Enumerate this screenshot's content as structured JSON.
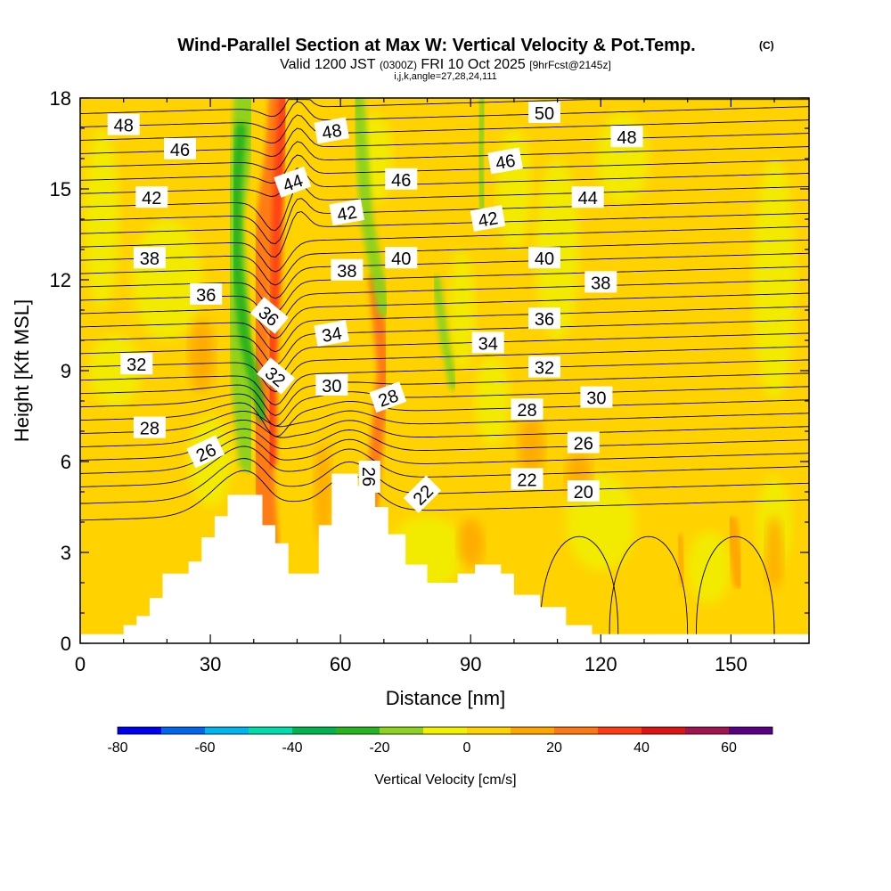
{
  "title": {
    "main": "Wind-Parallel Section at Max W: Vertical Velocity & Pot.Temp.",
    "mark": "(C)",
    "valid_prefix": "Valid 1200 JST",
    "valid_utc": "(0300Z)",
    "valid_date": "FRI 10 Oct 2025",
    "forecast": "[9hrFcst@2145z]",
    "params": "i,j,k,angle=27,28,24,111"
  },
  "chart_data": {
    "type": "heatmap",
    "xlabel": "Distance [nm]",
    "ylabel": "Height [Kft MSL]",
    "xlim": [
      0,
      168
    ],
    "ylim": [
      0,
      18
    ],
    "x_ticks": [
      0,
      30,
      60,
      90,
      120,
      150
    ],
    "y_ticks": [
      0,
      3,
      6,
      9,
      12,
      15,
      18
    ],
    "colorbar": {
      "label": "Vertical Velocity [cm/s]",
      "bounds": [
        -80,
        -70,
        -60,
        -50,
        -40,
        -30,
        -20,
        -10,
        0,
        10,
        20,
        30,
        40,
        50,
        60,
        70
      ],
      "colors": [
        "#0000f0",
        "#0066ee",
        "#00b4ee",
        "#00dcaa",
        "#00b450",
        "#28b41e",
        "#8cd21e",
        "#f0f000",
        "#ffd200",
        "#ffa500",
        "#ff7814",
        "#ff3c14",
        "#dc1414",
        "#a01450",
        "#5a0082"
      ],
      "tick_values": [
        -80,
        -60,
        -40,
        -20,
        0,
        20,
        40,
        60
      ],
      "tick_labels": [
        "-80",
        "-60",
        "-40",
        "-20",
        "0",
        "20",
        "40",
        "60"
      ]
    },
    "base_field_color": "#ffd200",
    "vertical_velocity_features": [
      {
        "kind": "updraft",
        "color": "#ff7814",
        "points": [
          [
            44,
            1.5
          ],
          [
            42,
            6
          ],
          [
            41,
            11
          ],
          [
            43,
            14
          ],
          [
            45,
            16
          ],
          [
            46,
            18
          ]
        ],
        "width_nm": 5
      },
      {
        "kind": "updraft",
        "color": "#ff3c14",
        "points": [
          [
            44,
            6
          ],
          [
            44,
            9
          ],
          [
            45,
            12
          ],
          [
            46,
            16
          ],
          [
            47,
            18
          ]
        ],
        "width_nm": 2.5
      },
      {
        "kind": "updraft",
        "color": "#ff7814",
        "points": [
          [
            66,
            3
          ],
          [
            68,
            6
          ],
          [
            70,
            9
          ],
          [
            68,
            12
          ]
        ],
        "width_nm": 3
      },
      {
        "kind": "downdraft",
        "color": "#8cd21e",
        "points": [
          [
            39,
            6
          ],
          [
            37,
            9
          ],
          [
            36,
            12
          ],
          [
            35,
            14
          ],
          [
            37,
            16
          ],
          [
            38,
            18
          ]
        ],
        "width_nm": 5
      },
      {
        "kind": "downdraft",
        "color": "#28b41e",
        "points": [
          [
            42,
            7.5
          ],
          [
            38,
            10
          ],
          [
            36,
            12.5
          ],
          [
            36,
            15
          ],
          [
            37,
            17
          ]
        ],
        "width_nm": 2.5
      },
      {
        "kind": "downdraft",
        "color": "#8cd21e",
        "points": [
          [
            64,
            18
          ],
          [
            66,
            14
          ],
          [
            70,
            11
          ]
        ],
        "width_nm": 3
      },
      {
        "kind": "downdraft",
        "color": "#8cd21e",
        "points": [
          [
            82,
            12
          ],
          [
            84,
            10
          ],
          [
            86,
            8.5
          ]
        ],
        "width_nm": 2
      },
      {
        "kind": "downdraft",
        "color": "#8cd21e",
        "points": [
          [
            93,
            18
          ],
          [
            92,
            16
          ],
          [
            93,
            14
          ]
        ],
        "width_nm": 2
      },
      {
        "kind": "downdraft",
        "color": "#8cd21e",
        "points": [
          [
            123,
            3.5
          ],
          [
            123,
            2
          ],
          [
            123,
            1.5
          ]
        ],
        "width_nm": 1.2
      },
      {
        "kind": "weak-up",
        "color": "#ffa500",
        "points": [
          [
            150,
            4
          ],
          [
            152,
            2
          ]
        ],
        "width_nm": 3
      },
      {
        "kind": "weak-up",
        "color": "#ffa500",
        "points": [
          [
            138,
            3.5
          ],
          [
            139,
            2
          ]
        ],
        "width_nm": 1.5
      }
    ],
    "terrain_kft": [
      [
        0,
        0.3
      ],
      [
        10,
        0.3
      ],
      [
        10,
        0.6
      ],
      [
        13,
        0.6
      ],
      [
        13,
        0.9
      ],
      [
        16,
        0.9
      ],
      [
        16,
        1.5
      ],
      [
        19,
        1.5
      ],
      [
        19,
        2.3
      ],
      [
        25,
        2.3
      ],
      [
        25,
        2.7
      ],
      [
        28,
        2.7
      ],
      [
        28,
        3.5
      ],
      [
        31,
        3.5
      ],
      [
        31,
        4.2
      ],
      [
        34,
        4.2
      ],
      [
        34,
        4.9
      ],
      [
        42,
        4.9
      ],
      [
        42,
        3.9
      ],
      [
        45,
        3.9
      ],
      [
        45,
        3.3
      ],
      [
        48,
        3.3
      ],
      [
        48,
        2.3
      ],
      [
        55,
        2.3
      ],
      [
        55,
        3.9
      ],
      [
        58,
        3.9
      ],
      [
        58,
        5.6
      ],
      [
        64,
        5.6
      ],
      [
        64,
        5.2
      ],
      [
        68,
        5.2
      ],
      [
        68,
        4.5
      ],
      [
        71,
        4.5
      ],
      [
        71,
        3.6
      ],
      [
        75,
        3.6
      ],
      [
        75,
        2.6
      ],
      [
        80,
        2.6
      ],
      [
        80,
        2.0
      ],
      [
        87,
        2.0
      ],
      [
        87,
        2.3
      ],
      [
        91,
        2.3
      ],
      [
        91,
        2.6
      ],
      [
        97,
        2.6
      ],
      [
        97,
        2.3
      ],
      [
        100,
        2.3
      ],
      [
        100,
        1.6
      ],
      [
        106,
        1.6
      ],
      [
        106,
        1.2
      ],
      [
        112,
        1.2
      ],
      [
        112,
        0.6
      ],
      [
        118,
        0.6
      ],
      [
        118,
        0.3
      ],
      [
        168,
        0.3
      ]
    ],
    "isentropes_theta": [
      20,
      21,
      22,
      23,
      24,
      25,
      26,
      27,
      28,
      29,
      30,
      31,
      32,
      33,
      34,
      35,
      36,
      37,
      38,
      39,
      40,
      41,
      42,
      43,
      44,
      45,
      46,
      47,
      48,
      49,
      50
    ],
    "isentrope_labels": [
      {
        "text": "48",
        "x": 10,
        "y": 17.1
      },
      {
        "text": "46",
        "x": 23,
        "y": 16.3
      },
      {
        "text": "42",
        "x": 16.5,
        "y": 14.7
      },
      {
        "text": "38",
        "x": 16,
        "y": 12.7
      },
      {
        "text": "36",
        "x": 29,
        "y": 11.5
      },
      {
        "text": "32",
        "x": 13,
        "y": 9.2
      },
      {
        "text": "28",
        "x": 16,
        "y": 7.1
      },
      {
        "text": "26",
        "x": 29,
        "y": 6.3,
        "rotate": -25
      },
      {
        "text": "36",
        "x": 43.5,
        "y": 10.8,
        "rotate": 40
      },
      {
        "text": "32",
        "x": 45,
        "y": 8.8,
        "rotate": 40
      },
      {
        "text": "44",
        "x": 49,
        "y": 15.2,
        "rotate": -20
      },
      {
        "text": "48",
        "x": 58,
        "y": 16.9,
        "rotate": -10
      },
      {
        "text": "42",
        "x": 61.5,
        "y": 14.2,
        "rotate": -10
      },
      {
        "text": "38",
        "x": 61.5,
        "y": 12.3
      },
      {
        "text": "34",
        "x": 58,
        "y": 10.2,
        "rotate": -10
      },
      {
        "text": "30",
        "x": 58,
        "y": 8.5
      },
      {
        "text": "28",
        "x": 71,
        "y": 8.1,
        "rotate": -20
      },
      {
        "text": "26",
        "x": 66.5,
        "y": 5.5,
        "rotate": 90
      },
      {
        "text": "22",
        "x": 79,
        "y": 4.9,
        "rotate": -45
      },
      {
        "text": "46",
        "x": 74,
        "y": 15.3
      },
      {
        "text": "40",
        "x": 74,
        "y": 12.7
      },
      {
        "text": "46",
        "x": 98,
        "y": 15.9,
        "rotate": -10
      },
      {
        "text": "42",
        "x": 94,
        "y": 14.0,
        "rotate": -10
      },
      {
        "text": "34",
        "x": 94,
        "y": 9.9
      },
      {
        "text": "50",
        "x": 107,
        "y": 17.5
      },
      {
        "text": "48",
        "x": 126,
        "y": 16.7
      },
      {
        "text": "44",
        "x": 117,
        "y": 14.7
      },
      {
        "text": "40",
        "x": 107,
        "y": 12.7
      },
      {
        "text": "38",
        "x": 120,
        "y": 11.9
      },
      {
        "text": "36",
        "x": 107,
        "y": 10.7
      },
      {
        "text": "32",
        "x": 107,
        "y": 9.1
      },
      {
        "text": "30",
        "x": 119,
        "y": 8.1
      },
      {
        "text": "28",
        "x": 103,
        "y": 7.7
      },
      {
        "text": "26",
        "x": 116,
        "y": 6.6
      },
      {
        "text": "22",
        "x": 103,
        "y": 5.4
      },
      {
        "text": "20",
        "x": 116,
        "y": 5.0
      }
    ],
    "low_level_contour_centers_nm": [
      115,
      131,
      151
    ]
  }
}
